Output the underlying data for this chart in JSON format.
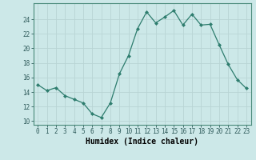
{
  "x": [
    0,
    1,
    2,
    3,
    4,
    5,
    6,
    7,
    8,
    9,
    10,
    11,
    12,
    13,
    14,
    15,
    16,
    17,
    18,
    19,
    20,
    21,
    22,
    23
  ],
  "y": [
    15.0,
    14.2,
    14.6,
    13.5,
    13.0,
    12.5,
    11.0,
    10.5,
    12.5,
    16.5,
    19.0,
    22.7,
    25.0,
    23.5,
    24.3,
    25.2,
    23.2,
    24.7,
    23.2,
    23.3,
    20.5,
    17.8,
    15.7,
    14.5
  ],
  "xlabel": "Humidex (Indice chaleur)",
  "ylim": [
    9.5,
    26.2
  ],
  "xlim": [
    -0.5,
    23.5
  ],
  "yticks": [
    10,
    12,
    14,
    16,
    18,
    20,
    22,
    24
  ],
  "xticks": [
    0,
    1,
    2,
    3,
    4,
    5,
    6,
    7,
    8,
    9,
    10,
    11,
    12,
    13,
    14,
    15,
    16,
    17,
    18,
    19,
    20,
    21,
    22,
    23
  ],
  "line_color": "#2e7d6e",
  "marker": "D",
  "marker_size": 2.0,
  "bg_color": "#cce8e8",
  "grid_color": "#b8d4d4",
  "label_fontsize": 7,
  "tick_fontsize": 5.5
}
